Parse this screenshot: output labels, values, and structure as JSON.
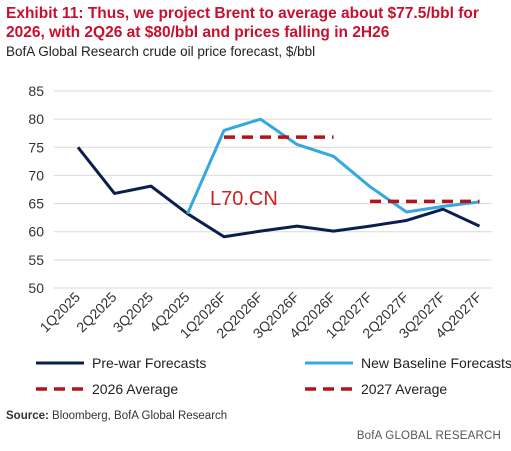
{
  "header": {
    "title": "Exhibit 11: Thus, we project Brent to average about $77.5/bbl for 2026, with 2Q26 at $80/bbl and prices falling in 2H26",
    "subtitle": "BofA Global Research crude oil price forecast, $/bbl"
  },
  "footer": {
    "source_label": "Source:",
    "source_text": " Bloomberg, BofA Global Research",
    "brand": "BofA GLOBAL RESEARCH"
  },
  "watermark": "L70.CN",
  "colors": {
    "prewar": "#0b1f4f",
    "baseline": "#35a8e0",
    "average": "#b5121b",
    "grid": "#d9d9d9"
  },
  "chart_data": {
    "type": "line",
    "categories": [
      "1Q2025",
      "2Q2025",
      "3Q2025",
      "4Q2025",
      "1Q2026F",
      "2Q2026F",
      "3Q2026F",
      "4Q2026F",
      "1Q2027F",
      "2Q2027F",
      "3Q2027F",
      "4Q2027F"
    ],
    "ylim": [
      50,
      85
    ],
    "yticks": [
      50,
      55,
      60,
      65,
      70,
      75,
      80,
      85
    ],
    "grid": true,
    "legend_position": "bottom",
    "series": [
      {
        "name": "Pre-war Forecasts",
        "key": "prewar",
        "style": "solid",
        "values": [
          75,
          66.8,
          68.1,
          63.2,
          59.1,
          60.1,
          61,
          60.1,
          61,
          62,
          64,
          61
        ]
      },
      {
        "name": "New Baseline Forecasts",
        "key": "baseline",
        "style": "solid",
        "values": [
          null,
          null,
          null,
          63.2,
          78,
          80,
          75.5,
          73.4,
          68,
          63.5,
          64.5,
          65.3
        ]
      },
      {
        "name": "2026 Average",
        "key": "average",
        "style": "dashed",
        "values": [
          null,
          null,
          null,
          null,
          76.8,
          76.8,
          76.8,
          76.8,
          null,
          null,
          null,
          null
        ]
      },
      {
        "name": "2027 Average",
        "key": "average",
        "style": "dashed",
        "values": [
          null,
          null,
          null,
          null,
          null,
          null,
          null,
          null,
          65.4,
          65.4,
          65.4,
          65.4
        ]
      }
    ]
  }
}
